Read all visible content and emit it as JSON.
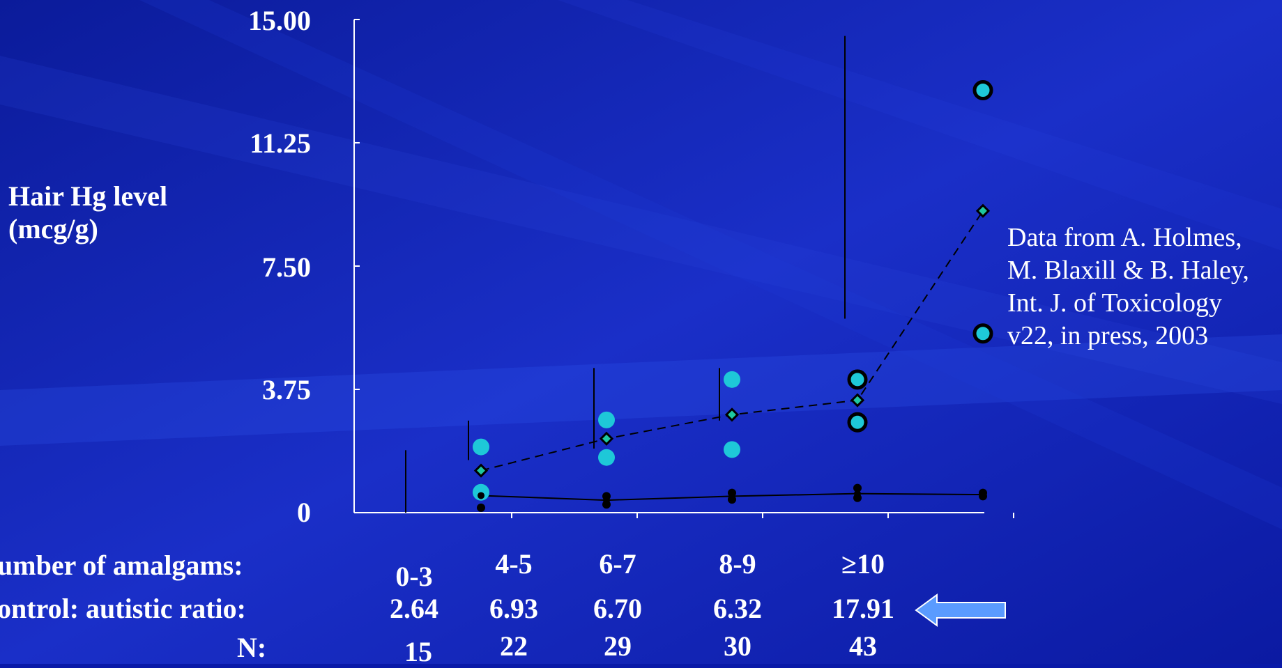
{
  "chart_data": {
    "type": "scatter",
    "ylabel_line1": "Hair Hg level",
    "ylabel_line2": "(mcg/g)",
    "ylim": [
      0,
      15
    ],
    "yticks": [
      "15.00",
      "11.25",
      "7.50",
      "3.75",
      "0"
    ],
    "categories": [
      "0-3",
      "4-5",
      "6-7",
      "8-9",
      "≥10"
    ],
    "series": [
      {
        "values": [
          1.28,
          2.25,
          2.98,
          3.42,
          9.18
        ],
        "marker": "diamond",
        "line": "dashed"
      },
      {
        "values": [
          0.52,
          0.38,
          0.5,
          0.58,
          0.55
        ],
        "marker": "dot",
        "line": "solid"
      }
    ],
    "scatter_points": [
      {
        "x": 0,
        "y": 2.0
      },
      {
        "x": 0,
        "y": 0.62
      },
      {
        "x": 1,
        "y": 2.82
      },
      {
        "x": 1,
        "y": 1.68
      },
      {
        "x": 2,
        "y": 4.05
      },
      {
        "x": 2,
        "y": 1.92
      },
      {
        "x": 3,
        "y": 4.05
      },
      {
        "x": 3,
        "y": 2.75
      },
      {
        "x": 4,
        "y": 12.85
      },
      {
        "x": 4,
        "y": 5.45
      }
    ],
    "error_bars": [
      {
        "x": 0,
        "low": 0,
        "high": 1.9
      },
      {
        "x": 0.5,
        "low": 1.6,
        "high": 2.8
      },
      {
        "x": 1.5,
        "low": 1.95,
        "high": 4.4
      },
      {
        "x": 2.5,
        "low": 2.8,
        "high": 4.4
      },
      {
        "x": 3.5,
        "low": 5.9,
        "high": 14.5
      }
    ],
    "lower_points": [
      {
        "x": 0,
        "y": 0.15
      },
      {
        "x": 1,
        "y": 0.5
      },
      {
        "x": 1,
        "y": 0.25
      },
      {
        "x": 2,
        "y": 0.6
      },
      {
        "x": 2,
        "y": 0.4
      },
      {
        "x": 3,
        "y": 0.75
      },
      {
        "x": 3,
        "y": 0.45
      },
      {
        "x": 4,
        "y": 0.6
      },
      {
        "x": 4,
        "y": 0.5
      }
    ]
  },
  "table": {
    "amalgams_label": "umber of amalgams:",
    "ratio_label": "ontrol: autistic ratio:",
    "n_label": "N:",
    "amalgams": [
      "0-3",
      "4-5",
      "6-7",
      "8-9",
      "≥10"
    ],
    "ratios": [
      "2.64",
      "6.93",
      "6.70",
      "6.32",
      "17.91"
    ],
    "n": [
      "15",
      "22",
      "29",
      "30",
      "43"
    ]
  },
  "annotation": {
    "line1": "Data from A. Holmes,",
    "line2": "M. Blaxill & B. Haley,",
    "line3": "Int. J. of Toxicology",
    "line4": "v22, in press, 2003"
  },
  "colors": {
    "background": "#0a1aa8",
    "point_fill": "#1ec8d8",
    "arrow_fill": "#5a9bff"
  }
}
